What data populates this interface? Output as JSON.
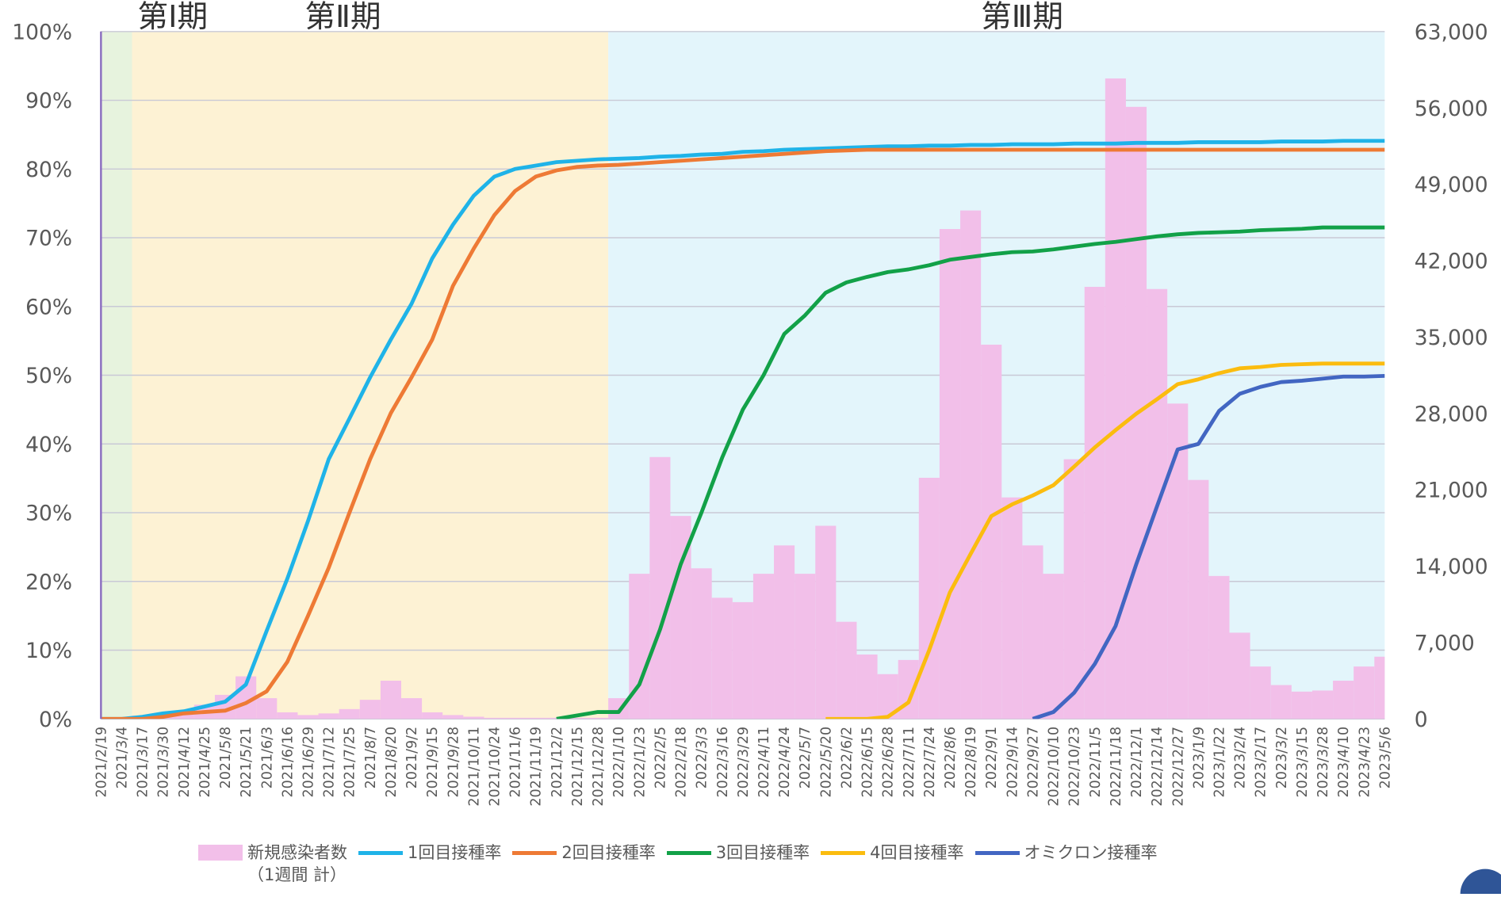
{
  "chart_data": {
    "type": "combo",
    "categories": [
      "2021/2/19",
      "2021/3/4",
      "2021/3/17",
      "2021/3/30",
      "2021/4/12",
      "2021/4/25",
      "2021/5/8",
      "2021/5/21",
      "2021/6/3",
      "2021/6/16",
      "2021/6/29",
      "2021/7/12",
      "2021/7/25",
      "2021/8/7",
      "2021/8/20",
      "2021/9/2",
      "2021/9/15",
      "2021/9/28",
      "2021/10/11",
      "2021/10/24",
      "2021/11/6",
      "2021/11/19",
      "2021/12/2",
      "2021/12/15",
      "2021/12/28",
      "2022/1/10",
      "2022/1/23",
      "2022/2/5",
      "2022/2/18",
      "2022/3/3",
      "2022/3/16",
      "2022/3/29",
      "2022/4/11",
      "2022/4/24",
      "2022/5/7",
      "2022/5/20",
      "2022/6/2",
      "2022/6/15",
      "2022/6/28",
      "2022/7/11",
      "2022/7/24",
      "2022/8/6",
      "2022/8/19",
      "2022/9/1",
      "2022/9/14",
      "2022/9/27",
      "2022/10/10",
      "2022/10/23",
      "2022/11/5",
      "2022/11/18",
      "2022/12/1",
      "2022/12/14",
      "2022/12/27",
      "2023/1/9",
      "2023/1/22",
      "2023/2/4",
      "2023/2/17",
      "2023/3/2",
      "2023/3/15",
      "2023/3/28",
      "2023/4/10",
      "2023/4/23",
      "2023/5/6"
    ],
    "periods": [
      {
        "label": "第Ⅰ期",
        "start": "2021/2/19",
        "end": "2021/3/4",
        "color": "#e7f3de"
      },
      {
        "label": "第Ⅱ期",
        "start": "2021/3/17",
        "end": "2021/12/28",
        "color": "#fdf2d4"
      },
      {
        "label": "第Ⅲ期",
        "start": "2022/1/10",
        "end": "2023/5/6",
        "color": "#e3f5fb"
      }
    ],
    "series": [
      {
        "name": "新規感染者数\n（1週間 計）",
        "type": "bar",
        "axis": "y2",
        "color": "#f2bfe9",
        "values": [
          0,
          100,
          300,
          400,
          700,
          1300,
          2200,
          3900,
          1900,
          600,
          350,
          500,
          900,
          1750,
          3500,
          1900,
          600,
          350,
          200,
          100,
          100,
          100,
          100,
          100,
          100,
          1900,
          13300,
          24000,
          18600,
          13800,
          11100,
          10700,
          13300,
          15900,
          13300,
          17700,
          8900,
          5900,
          4100,
          5400,
          22100,
          44900,
          46600,
          34300,
          20300,
          15900,
          13300,
          23800,
          39600,
          58700,
          56100,
          39400,
          28900,
          21900,
          13100,
          7900,
          4800,
          3100,
          2500,
          2600,
          3500,
          4800,
          5700
        ]
      },
      {
        "name": "1回目接種率",
        "type": "line",
        "color": "#1fb3e8",
        "values": [
          0,
          0,
          0.3,
          0.8,
          1.1,
          1.8,
          2.5,
          5,
          12.8,
          20.4,
          28.8,
          37.8,
          43.7,
          49.7,
          55.2,
          60.4,
          67,
          71.9,
          76.1,
          78.9,
          80,
          80.5,
          81,
          81.2,
          81.4,
          81.5,
          81.6,
          81.8,
          81.9,
          82.1,
          82.2,
          82.5,
          82.6,
          82.8,
          82.9,
          83,
          83.1,
          83.2,
          83.3,
          83.3,
          83.4,
          83.4,
          83.5,
          83.5,
          83.6,
          83.6,
          83.6,
          83.7,
          83.7,
          83.7,
          83.8,
          83.8,
          83.8,
          83.9,
          83.9,
          83.9,
          83.9,
          84,
          84,
          84,
          84.1,
          84.1,
          84.1
        ]
      },
      {
        "name": "2回目接種率",
        "type": "line",
        "color": "#ee7a35",
        "values": [
          0,
          0,
          0,
          0.3,
          0.8,
          1,
          1.2,
          2.3,
          4,
          8.3,
          15,
          22,
          30,
          37.8,
          44.5,
          49.7,
          55.2,
          63,
          68.4,
          73.3,
          76.8,
          78.9,
          79.8,
          80.3,
          80.5,
          80.6,
          80.8,
          81,
          81.2,
          81.4,
          81.6,
          81.8,
          82,
          82.2,
          82.4,
          82.6,
          82.7,
          82.8,
          82.8,
          82.8,
          82.8,
          82.8,
          82.8,
          82.8,
          82.8,
          82.8,
          82.8,
          82.8,
          82.8,
          82.8,
          82.8,
          82.8,
          82.8,
          82.8,
          82.8,
          82.8,
          82.8,
          82.8,
          82.8,
          82.8,
          82.8,
          82.8,
          82.8
        ]
      },
      {
        "name": "3回目接種率",
        "type": "line",
        "color": "#12a148",
        "values": [
          null,
          null,
          null,
          null,
          null,
          null,
          null,
          null,
          null,
          null,
          null,
          null,
          null,
          null,
          null,
          null,
          null,
          null,
          null,
          null,
          null,
          null,
          0,
          0.5,
          1,
          1,
          5,
          13,
          22.5,
          30,
          38,
          45,
          50,
          56,
          58.7,
          62,
          63.5,
          64.3,
          65,
          65.4,
          66,
          66.8,
          67.2,
          67.6,
          67.9,
          68,
          68.3,
          68.7,
          69.1,
          69.4,
          69.8,
          70.2,
          70.5,
          70.7,
          70.8,
          70.9,
          71.1,
          71.2,
          71.3,
          71.5,
          71.5,
          71.5,
          71.5
        ]
      },
      {
        "name": "4回目接種率",
        "type": "line",
        "color": "#fbbc0f",
        "values": [
          null,
          null,
          null,
          null,
          null,
          null,
          null,
          null,
          null,
          null,
          null,
          null,
          null,
          null,
          null,
          null,
          null,
          null,
          null,
          null,
          null,
          null,
          null,
          null,
          null,
          null,
          null,
          null,
          null,
          null,
          null,
          null,
          null,
          null,
          null,
          0,
          0,
          0,
          0.3,
          2.4,
          10,
          18.4,
          24,
          29.5,
          31.2,
          32.5,
          34,
          36.7,
          39.5,
          42,
          44.4,
          46.5,
          48.7,
          49.4,
          50.3,
          51,
          51.2,
          51.5,
          51.6,
          51.7,
          51.7,
          51.7,
          51.7
        ]
      },
      {
        "name": "オミクロン接種率",
        "type": "line",
        "color": "#4266c2",
        "values": [
          null,
          null,
          null,
          null,
          null,
          null,
          null,
          null,
          null,
          null,
          null,
          null,
          null,
          null,
          null,
          null,
          null,
          null,
          null,
          null,
          null,
          null,
          null,
          null,
          null,
          null,
          null,
          null,
          null,
          null,
          null,
          null,
          null,
          null,
          null,
          null,
          null,
          null,
          null,
          null,
          null,
          null,
          null,
          null,
          null,
          0,
          1,
          3.8,
          8,
          13.5,
          22.5,
          30.9,
          39.2,
          40,
          44.8,
          47.3,
          48.3,
          49,
          49.2,
          49.5,
          49.8,
          49.8,
          49.9
        ]
      }
    ],
    "ylim": [
      0,
      100
    ],
    "yticks": [
      {
        "value": 0,
        "label": "0%"
      },
      {
        "value": 10,
        "label": "10%"
      },
      {
        "value": 20,
        "label": "20%"
      },
      {
        "value": 30,
        "label": "30%"
      },
      {
        "value": 40,
        "label": "40%"
      },
      {
        "value": 50,
        "label": "50%"
      },
      {
        "value": 60,
        "label": "60%"
      },
      {
        "value": 70,
        "label": "70%"
      },
      {
        "value": 80,
        "label": "80%"
      },
      {
        "value": 90,
        "label": "90%"
      },
      {
        "value": 100,
        "label": "100%"
      }
    ],
    "y2lim": [
      0,
      63000
    ],
    "y2ticks": [
      0,
      {
        "value": 7000,
        "label": "7,000"
      },
      {
        "value": 14000,
        "label": "14,000"
      },
      {
        "value": 21000,
        "label": "21,000"
      },
      {
        "value": 28000,
        "label": "28,000"
      },
      {
        "value": 35000,
        "label": "35,000"
      },
      {
        "value": 42000,
        "label": "42,000"
      },
      {
        "value": 49000,
        "label": "49,000"
      },
      {
        "value": 56000,
        "label": "56,000"
      },
      {
        "value": 63000,
        "label": "63,000"
      }
    ],
    "grid": true
  }
}
